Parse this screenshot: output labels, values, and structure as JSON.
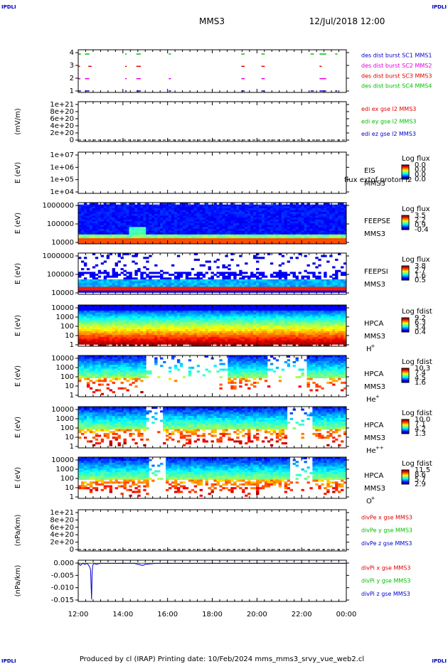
{
  "corner_label": "IPDLI",
  "header": {
    "spacecraft": "MMS3",
    "datetime": "12/Jul/2018 12:00"
  },
  "footer": {
    "text": "Produced by cl (IRAP)   Printing date: 10/Feb/2024   mms_mms3_srvy_vue_web2.cl"
  },
  "x_axis": {
    "ticks": [
      "12:00",
      "14:00",
      "16:00",
      "18:00",
      "20:00",
      "22:00",
      "00:00"
    ],
    "range_hours": [
      12,
      24
    ]
  },
  "colors": {
    "red": "#e00000",
    "magenta": "#e000e0",
    "green": "#00c000",
    "blue": "#0000d0",
    "black": "#000000"
  },
  "chart_data": [
    {
      "type": "scatter",
      "id": "burst",
      "y_ticks": [
        "4",
        "3",
        "2",
        "1"
      ],
      "legend": [
        {
          "text": "des dist burst SC1 MMS1",
          "color": "#0000d0"
        },
        {
          "text": "des dist burst SC2 MMS2",
          "color": "#e000e0"
        },
        {
          "text": "des dist burst SC3 MMS3",
          "color": "#e00000"
        },
        {
          "text": "des dist burst SC4 MMS4",
          "color": "#00c000"
        }
      ],
      "series": [
        {
          "level": 4,
          "color": "#00c000",
          "intervals": [
            [
              12.0,
              12.12
            ],
            [
              12.3,
              12.5
            ],
            [
              14.1,
              14.17
            ],
            [
              14.6,
              14.8
            ],
            [
              16.05,
              16.15
            ],
            [
              19.3,
              19.45
            ],
            [
              20.2,
              20.35
            ],
            [
              22.4,
              22.55
            ],
            [
              22.8,
              23.1
            ],
            [
              23.5,
              23.6
            ]
          ]
        },
        {
          "level": 3,
          "color": "#e00000",
          "intervals": [
            [
              12.0,
              12.08
            ],
            [
              12.45,
              12.6
            ],
            [
              14.1,
              14.17
            ],
            [
              14.6,
              14.8
            ],
            [
              19.3,
              19.45
            ],
            [
              20.2,
              20.35
            ],
            [
              22.8,
              22.9
            ]
          ]
        },
        {
          "level": 2,
          "color": "#e000e0",
          "intervals": [
            [
              12.0,
              12.1
            ],
            [
              12.3,
              12.5
            ],
            [
              14.1,
              14.17
            ],
            [
              14.6,
              14.8
            ],
            [
              16.05,
              16.15
            ],
            [
              19.3,
              19.45
            ],
            [
              20.2,
              20.35
            ],
            [
              22.8,
              23.1
            ]
          ]
        },
        {
          "level": 1,
          "color": "#0000d0",
          "intervals": [
            [
              12.0,
              12.12
            ],
            [
              12.3,
              12.5
            ],
            [
              14.1,
              14.17
            ],
            [
              14.6,
              14.8
            ],
            [
              16.05,
              16.15
            ],
            [
              19.3,
              19.45
            ],
            [
              20.2,
              20.35
            ],
            [
              22.4,
              22.55
            ],
            [
              22.8,
              23.1
            ],
            [
              23.5,
              23.6
            ]
          ]
        }
      ]
    },
    {
      "type": "line",
      "id": "edi",
      "ylabel": "(mV/m)",
      "y_ticks": [
        "1e+21",
        "8e+20",
        "6e+20",
        "4e+20",
        "2e+20",
        "0"
      ],
      "legend": [
        {
          "text": "edi ex gse l2 MMS3",
          "color": "#e00000"
        },
        {
          "text": "edi ey gse l2 MMS3",
          "color": "#00c000"
        },
        {
          "text": "edi ez gse l2 MMS3",
          "color": "#0000d0"
        }
      ],
      "series": []
    },
    {
      "type": "heatmap",
      "id": "eis",
      "ylabel": "E (eV)",
      "y_ticks": [
        "1e+07",
        "1e+06",
        "1e+05",
        "1e+04"
      ],
      "instrument": "EIS",
      "spacecraft": "MMS3",
      "overlay": "flux extof proton l2",
      "colorbar_title": "Log flux",
      "colorbar_ticks": [
        "0.0",
        "0.0",
        "0.0",
        "0.0"
      ]
    },
    {
      "type": "heatmap",
      "id": "feepse",
      "ylabel": "E (eV)",
      "y_ticks": [
        "1000000",
        "100000",
        "10000"
      ],
      "instrument": "FEEPSE",
      "spacecraft": "MMS3",
      "colorbar_title": "Log flux",
      "colorbar_ticks": [
        "3.5",
        "2.2",
        "0.9",
        "-0.4"
      ]
    },
    {
      "type": "heatmap",
      "id": "feepsi",
      "ylabel": "E (eV)",
      "y_ticks": [
        "1000000",
        "100000",
        "10000"
      ],
      "instrument": "FEEPSI",
      "spacecraft": "MMS3",
      "colorbar_title": "Log flux",
      "colorbar_ticks": [
        "3.8",
        "2.7",
        "1.6",
        "0.5"
      ]
    },
    {
      "type": "heatmap",
      "id": "hpca_h",
      "ylabel": "E (eV)",
      "y_ticks": [
        "10000",
        "1000",
        "100",
        "10",
        "1"
      ],
      "instrument": "HPCA",
      "spacecraft": "MMS3",
      "species": "H",
      "species_charge": "+",
      "colorbar_title": "Log fdist",
      "colorbar_ticks": [
        "9.2",
        "6.3",
        "3.4",
        "0.4"
      ]
    },
    {
      "type": "heatmap",
      "id": "hpca_he",
      "ylabel": "E (eV)",
      "y_ticks": [
        "10000",
        "1000",
        "100",
        "10",
        "1"
      ],
      "instrument": "HPCA",
      "spacecraft": "MMS3",
      "species": "He",
      "species_charge": "+",
      "colorbar_title": "Log fdist",
      "colorbar_ticks": [
        "10.3",
        "7.4",
        "4.5",
        "1.6"
      ]
    },
    {
      "type": "heatmap",
      "id": "hpca_hepp",
      "ylabel": "E (eV)",
      "y_ticks": [
        "10000",
        "1000",
        "100",
        "10",
        "1"
      ],
      "instrument": "HPCA",
      "spacecraft": "MMS3",
      "species": "He",
      "species_charge": "++",
      "colorbar_title": "Log fdist",
      "colorbar_ticks": [
        "10.0",
        "7.1",
        "4.2",
        "1.3"
      ]
    },
    {
      "type": "heatmap",
      "id": "hpca_o",
      "ylabel": "E (eV)",
      "y_ticks": [
        "10000",
        "1000",
        "100",
        "10",
        "1"
      ],
      "instrument": "HPCA",
      "spacecraft": "MMS3",
      "species": "O",
      "species_charge": "+",
      "colorbar_title": "Log fdist",
      "colorbar_ticks": [
        "11.5",
        "8.6",
        "5.7",
        "2.9"
      ]
    },
    {
      "type": "line",
      "id": "divpe",
      "ylabel": "(nPa/km)",
      "y_ticks": [
        "1e+21",
        "8e+20",
        "6e+20",
        "4e+20",
        "2e+20",
        "0"
      ],
      "legend": [
        {
          "text": "divPe x gse MMS3",
          "color": "#e00000"
        },
        {
          "text": "divPe y gse MMS3",
          "color": "#00c000"
        },
        {
          "text": "divPe z gse MMS3",
          "color": "#0000d0"
        }
      ],
      "series": []
    },
    {
      "type": "line",
      "id": "divpi",
      "ylabel": "(nPa/km)",
      "y_ticks": [
        "0.000",
        "-0.005",
        "-0.010",
        "-0.015"
      ],
      "ylim": [
        -0.0185,
        0.0015
      ],
      "legend": [
        {
          "text": "divPi x gse MMS3",
          "color": "#e00000"
        },
        {
          "text": "divPi y gse MMS3",
          "color": "#00c000"
        },
        {
          "text": "divPi z gse MMS3",
          "color": "#0000d0"
        }
      ],
      "series": [
        {
          "name": "divPi x gse MMS3",
          "color": "#e00000",
          "x": [
            12.0,
            12.5,
            13.0,
            14.0,
            15.0,
            16.0,
            17.0,
            18.0,
            19.0,
            20.0,
            21.0,
            22.0,
            23.0,
            24.0
          ],
          "y": [
            0.0,
            0.0,
            0.0,
            0.0,
            0.0,
            0.0,
            0.0,
            0.0,
            0.0,
            0.0,
            0.0,
            0.0,
            0.0,
            0.0
          ]
        },
        {
          "name": "divPi y gse MMS3",
          "color": "#00c000",
          "x": [
            12.0,
            12.5,
            13.0,
            14.0,
            15.0,
            16.0,
            17.0,
            18.0,
            19.0,
            20.0,
            21.0,
            22.0,
            23.0,
            24.0
          ],
          "y": [
            0.0,
            0.0,
            0.0,
            0.0,
            0.0,
            0.0,
            0.0,
            0.0,
            0.0,
            0.0,
            0.0,
            0.0,
            0.0,
            0.0
          ]
        },
        {
          "name": "divPi z gse MMS3",
          "color": "#0000d0",
          "x": [
            12.0,
            12.1,
            12.2,
            12.3,
            12.4,
            12.5,
            12.55,
            12.6,
            12.62,
            12.65,
            12.7,
            12.8,
            13.0,
            13.5,
            14.0,
            14.5,
            14.8,
            14.9,
            15.0,
            15.5,
            16.0,
            17.0,
            18.0,
            19.0,
            20.0,
            21.0,
            22.0,
            23.0,
            24.0
          ],
          "y": [
            0.0,
            -0.001,
            0.0,
            -0.0005,
            0.0,
            -0.0015,
            -0.003,
            -0.0175,
            -0.005,
            -0.001,
            0.0,
            -0.0005,
            0.0,
            0.0,
            0.0,
            0.0,
            -0.0008,
            -0.001,
            -0.0005,
            0.0,
            0.0,
            0.0,
            0.0,
            0.0,
            0.0,
            0.0,
            0.0,
            0.0,
            0.0
          ]
        }
      ]
    }
  ]
}
